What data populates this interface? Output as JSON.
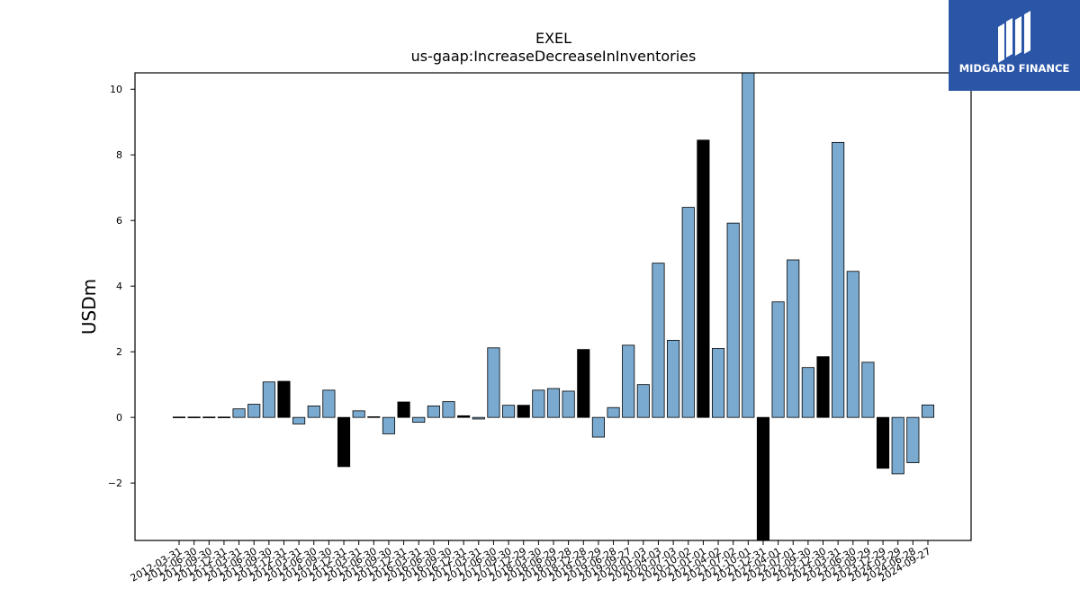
{
  "brand": {
    "name": "MIDGARD FINANCE",
    "color": "#2b56a8",
    "icon": "midgard-logo-icon"
  },
  "chart_data": {
    "type": "bar",
    "title": "EXEL",
    "subtitle": "us-gaap:IncreaseDecreaseInInventories",
    "xlabel": "",
    "ylabel": "USDm",
    "ylim": [
      -3.75,
      10.5
    ],
    "yticks": [
      -2,
      0,
      2,
      4,
      6,
      8,
      10
    ],
    "grid": false,
    "colors": {
      "bar": "#7aaad0",
      "highlight": "#000000",
      "edge": "#000000"
    },
    "categories": [
      "2012-03-31",
      "2012-06-30",
      "2012-09-30",
      "2012-12-31",
      "2013-03-31",
      "2013-06-30",
      "2013-09-30",
      "2013-12-31",
      "2014-03-31",
      "2014-06-30",
      "2014-09-30",
      "2014-12-31",
      "2015-03-31",
      "2015-06-30",
      "2015-09-30",
      "2015-12-31",
      "2016-03-31",
      "2016-06-30",
      "2016-09-30",
      "2016-12-31",
      "2017-03-31",
      "2017-06-30",
      "2017-09-30",
      "2017-12-29",
      "2018-03-30",
      "2018-06-29",
      "2018-09-28",
      "2018-12-28",
      "2019-03-29",
      "2019-06-28",
      "2019-09-27",
      "2020-01-03",
      "2020-04-03",
      "2020-07-03",
      "2020-10-02",
      "2021-01-01",
      "2021-04-02",
      "2021-07-02",
      "2021-10-01",
      "2021-12-31",
      "2022-04-01",
      "2022-07-01",
      "2022-09-30",
      "2022-12-30",
      "2023-03-31",
      "2023-06-30",
      "2023-09-29",
      "2023-12-29",
      "2024-03-29",
      "2024-06-28",
      "2024-09-27"
    ],
    "values": [
      0.0,
      0.0,
      0.0,
      0.0,
      0.26,
      0.4,
      1.08,
      1.1,
      -0.2,
      0.35,
      0.83,
      -1.5,
      0.2,
      0.02,
      -0.5,
      0.47,
      -0.15,
      0.35,
      0.48,
      0.05,
      -0.05,
      2.12,
      0.37,
      0.37,
      0.83,
      0.88,
      0.8,
      2.07,
      -0.6,
      0.3,
      2.2,
      1.0,
      4.7,
      2.35,
      6.4,
      8.45,
      2.1,
      5.92,
      10.6,
      -3.75,
      3.52,
      4.8,
      1.52,
      1.85,
      8.38,
      4.45,
      1.68,
      -1.55,
      -1.72,
      -1.38,
      0.38
    ],
    "highlight": [
      false,
      false,
      false,
      false,
      false,
      false,
      false,
      true,
      false,
      false,
      false,
      true,
      false,
      false,
      false,
      true,
      false,
      false,
      false,
      true,
      false,
      false,
      false,
      true,
      false,
      false,
      false,
      true,
      false,
      false,
      false,
      false,
      false,
      false,
      false,
      true,
      false,
      false,
      false,
      true,
      false,
      false,
      false,
      true,
      false,
      false,
      false,
      true,
      false,
      false,
      false
    ]
  }
}
